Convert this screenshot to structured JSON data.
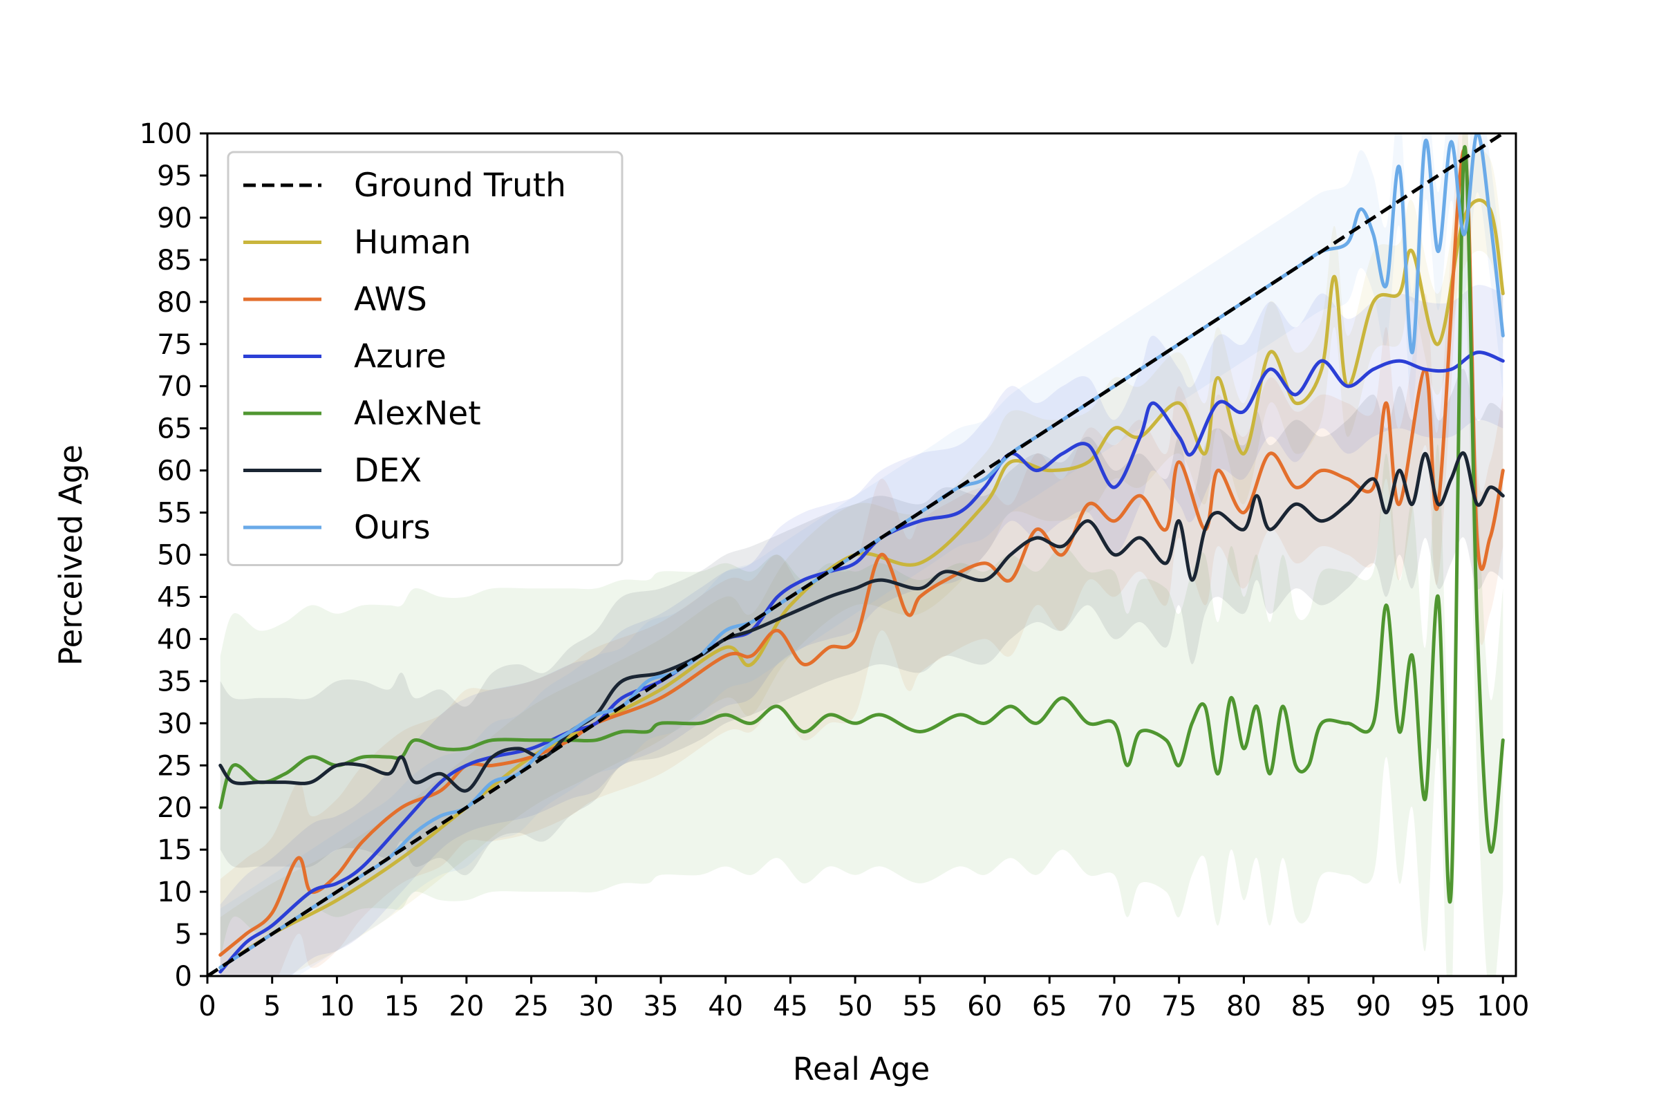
{
  "chart_data": {
    "type": "line",
    "title": "",
    "xlabel": "Real Age",
    "ylabel": "Perceived Age",
    "xlim": [
      0,
      101
    ],
    "ylim": [
      0,
      100
    ],
    "x_ticks": [
      "0",
      "5",
      "10",
      "15",
      "20",
      "25",
      "30",
      "35",
      "40",
      "45",
      "50",
      "55",
      "60",
      "65",
      "70",
      "75",
      "80",
      "85",
      "90",
      "95",
      "100"
    ],
    "y_ticks": [
      "0",
      "5",
      "10",
      "15",
      "20",
      "25",
      "30",
      "35",
      "40",
      "45",
      "50",
      "55",
      "60",
      "65",
      "70",
      "75",
      "80",
      "85",
      "90",
      "95",
      "100"
    ],
    "grid": false,
    "legend_position": "top-left",
    "shaded_bands": "each series has a translucent band around its line",
    "series": [
      {
        "name": "Ground Truth",
        "color": "#000000",
        "style": "dashed",
        "x": [
          0,
          100
        ],
        "y": [
          0,
          100
        ]
      },
      {
        "name": "Human",
        "color": "#c9b53c",
        "style": "solid",
        "x": [
          1,
          5,
          10,
          15,
          20,
          25,
          30,
          35,
          40,
          42,
          45,
          50,
          55,
          60,
          62,
          65,
          68,
          70,
          72,
          75,
          77,
          78,
          80,
          82,
          84,
          86,
          87,
          88,
          90,
          92,
          93,
          95,
          97,
          99,
          100
        ],
        "y": [
          1,
          5,
          9,
          14,
          20,
          26,
          30,
          34,
          39,
          37,
          44,
          50,
          49,
          56,
          61,
          60,
          61,
          65,
          64,
          68,
          62,
          71,
          62,
          74,
          68,
          72,
          83,
          70,
          80,
          81,
          86,
          75,
          90,
          91,
          81
        ],
        "band": 6
      },
      {
        "name": "AWS",
        "color": "#e36f2c",
        "style": "solid",
        "x": [
          1,
          3,
          5,
          7,
          8,
          10,
          12,
          15,
          18,
          20,
          22,
          25,
          28,
          30,
          35,
          40,
          42,
          44,
          46,
          48,
          50,
          52,
          54,
          55,
          57,
          60,
          62,
          64,
          66,
          68,
          70,
          72,
          74,
          75,
          77,
          78,
          80,
          82,
          84,
          86,
          88,
          90,
          91,
          92,
          94,
          95,
          97,
          98,
          99,
          100
        ],
        "y": [
          2.5,
          5,
          7.5,
          14,
          10,
          12,
          16,
          20,
          22,
          25,
          25,
          26,
          28,
          30,
          33,
          38,
          38,
          41,
          37,
          39,
          40,
          50,
          43,
          45,
          47,
          49,
          47,
          53,
          50,
          56,
          54,
          57,
          53,
          61,
          53,
          60,
          55,
          62,
          58,
          60,
          59,
          58,
          68,
          56,
          72,
          56,
          98,
          52,
          52,
          60
        ],
        "band": 9
      },
      {
        "name": "Azure",
        "color": "#2b3fd6",
        "style": "solid",
        "x": [
          1,
          3,
          5,
          8,
          10,
          12,
          15,
          18,
          20,
          22,
          25,
          28,
          30,
          32,
          35,
          38,
          40,
          42,
          44,
          46,
          48,
          50,
          52,
          55,
          58,
          60,
          62,
          64,
          66,
          68,
          70,
          72,
          73,
          75,
          76,
          78,
          80,
          82,
          84,
          86,
          88,
          90,
          92,
          94,
          96,
          98,
          100
        ],
        "y": [
          0.5,
          4,
          6,
          10,
          11,
          13,
          18,
          23,
          25,
          26,
          27,
          29,
          30,
          33,
          35,
          38,
          40,
          41,
          45,
          47,
          48,
          49,
          52,
          54,
          55,
          58,
          62,
          60,
          62,
          63,
          58,
          64,
          68,
          64,
          62,
          68,
          67,
          72,
          69,
          73,
          70,
          72,
          73,
          72,
          72,
          74,
          73
        ],
        "band": 8
      },
      {
        "name": "AlexNet",
        "color": "#4f9630",
        "style": "solid",
        "x": [
          1,
          2,
          4,
          6,
          8,
          10,
          12,
          14,
          15,
          16,
          18,
          20,
          22,
          25,
          28,
          30,
          32,
          34,
          35,
          38,
          40,
          42,
          44,
          46,
          48,
          50,
          52,
          55,
          58,
          60,
          62,
          64,
          66,
          68,
          70,
          71,
          72,
          74,
          75,
          76,
          77,
          78,
          79,
          80,
          81,
          82,
          83,
          84,
          85,
          86,
          88,
          90,
          91,
          92,
          93,
          94,
          95,
          96,
          97,
          98,
          99,
          100
        ],
        "y": [
          20,
          25,
          23,
          24,
          26,
          25,
          26,
          26,
          26,
          28,
          27,
          27,
          28,
          28,
          28,
          28,
          29,
          29,
          30,
          30,
          31,
          30,
          32,
          29,
          31,
          30,
          31,
          29,
          31,
          30,
          32,
          30,
          33,
          30,
          30,
          25,
          29,
          28,
          25,
          30,
          32,
          24,
          33,
          27,
          32,
          24,
          32,
          25,
          25,
          30,
          30,
          30,
          44,
          29,
          38,
          21,
          45,
          10,
          98,
          42,
          15,
          28
        ],
        "band": 18
      },
      {
        "name": "DEX",
        "color": "#1a2533",
        "style": "solid",
        "x": [
          1,
          2,
          4,
          6,
          8,
          10,
          12,
          14,
          15,
          16,
          18,
          20,
          22,
          24,
          26,
          28,
          30,
          32,
          35,
          38,
          40,
          42,
          45,
          48,
          50,
          52,
          55,
          57,
          60,
          62,
          64,
          66,
          68,
          70,
          72,
          74,
          75,
          76,
          77,
          78,
          80,
          81,
          82,
          84,
          86,
          88,
          90,
          91,
          92,
          93,
          94,
          95,
          96,
          97,
          98,
          99,
          100
        ],
        "y": [
          25,
          23,
          23,
          23,
          23,
          25,
          25,
          24,
          26,
          23,
          24,
          22,
          26,
          27,
          26,
          29,
          31,
          35,
          36,
          38,
          40,
          41,
          43,
          45,
          46,
          47,
          46,
          48,
          47,
          50,
          52,
          51,
          54,
          50,
          52,
          49,
          54,
          47,
          53,
          55,
          53,
          57,
          53,
          56,
          54,
          56,
          59,
          55,
          60,
          56,
          62,
          56,
          59,
          62,
          56,
          58,
          57
        ],
        "band": 10
      },
      {
        "name": "Ours",
        "color": "#6aaae8",
        "style": "solid",
        "x": [
          1,
          2,
          4,
          6,
          8,
          10,
          12,
          14,
          16,
          18,
          20,
          22,
          24,
          26,
          28,
          30,
          32,
          34,
          36,
          38,
          40,
          42,
          44,
          46,
          48,
          50,
          52,
          54,
          56,
          58,
          60,
          62,
          64,
          66,
          68,
          70,
          72,
          74,
          76,
          78,
          80,
          82,
          84,
          86,
          88,
          89,
          90,
          91,
          92,
          93,
          94,
          95,
          96,
          97,
          98,
          99,
          100
        ],
        "y": [
          1,
          2,
          4,
          6,
          8,
          10,
          12,
          14,
          17,
          19,
          20,
          23,
          24,
          27,
          29,
          31,
          32,
          35,
          36,
          38,
          41,
          42,
          44,
          46,
          48,
          50,
          52,
          54,
          56,
          58,
          59,
          62,
          64,
          66,
          68,
          70,
          72,
          74,
          76,
          78,
          80,
          82,
          84,
          86,
          87,
          91,
          88,
          82,
          96,
          74,
          99,
          86,
          99,
          88,
          100,
          90,
          76
        ],
        "band": 7
      }
    ]
  }
}
